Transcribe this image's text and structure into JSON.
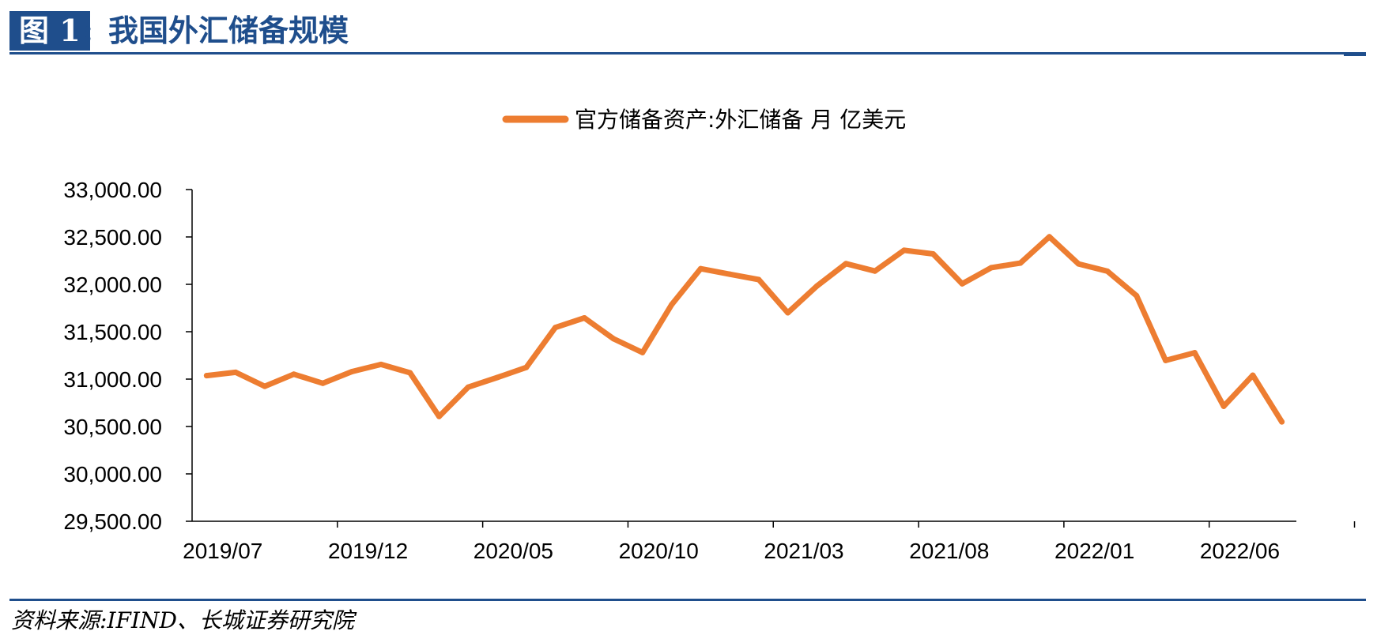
{
  "header": {
    "figure_number": "图 1",
    "colon": ":",
    "title": "我国外汇储备规模"
  },
  "source": "资料来源:IFIND、长城证券研究院",
  "chart_data": {
    "type": "line",
    "legend": {
      "label": "官方储备资产:外汇储备 月 亿美元",
      "placement": "top-center"
    },
    "line_color": "#ed7d31",
    "ylim": [
      29500,
      33000
    ],
    "y_ticks": [
      29500,
      30000,
      30500,
      31000,
      31500,
      32000,
      32500,
      33000
    ],
    "y_tick_labels": [
      "29,500.00",
      "30,000.00",
      "30,500.00",
      "31,000.00",
      "31,500.00",
      "32,000.00",
      "32,500.00",
      "33,000.00"
    ],
    "x_tick_labels": [
      "2019/07",
      "2019/12",
      "2020/05",
      "2020/10",
      "2021/03",
      "2021/08",
      "2022/01",
      "2022/06"
    ],
    "x_tick_label_indices": [
      0,
      5,
      10,
      15,
      20,
      25,
      30,
      35
    ],
    "grid": false,
    "series": [
      {
        "x": [
          "2019/07",
          "2019/08",
          "2019/09",
          "2019/10",
          "2019/11",
          "2019/12",
          "2020/01",
          "2020/02",
          "2020/03",
          "2020/04",
          "2020/05",
          "2020/06",
          "2020/07",
          "2020/08",
          "2020/09",
          "2020/10",
          "2020/11",
          "2020/12",
          "2021/01",
          "2021/02",
          "2021/03",
          "2021/04",
          "2021/05",
          "2021/06",
          "2021/07",
          "2021/08",
          "2021/09",
          "2021/10",
          "2021/11",
          "2021/12",
          "2022/01",
          "2022/02",
          "2022/03",
          "2022/04",
          "2022/05",
          "2022/06",
          "2022/07",
          "2022/08"
        ],
        "values": [
          31037,
          31072,
          30924,
          31052,
          30956,
          31079,
          31155,
          31067,
          30606,
          30915,
          31017,
          31123,
          31544,
          31646,
          31426,
          31280,
          31785,
          32165,
          32107,
          32050,
          31700,
          31982,
          32218,
          32140,
          32359,
          32321,
          32006,
          32176,
          32224,
          32502,
          32216,
          32138,
          31880,
          31197,
          31278,
          30713,
          31041,
          30549
        ]
      }
    ]
  }
}
